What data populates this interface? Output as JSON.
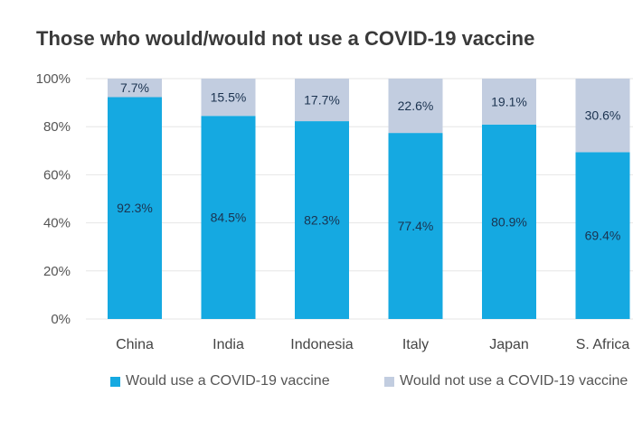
{
  "title": "Those who would/would not use a COVID-19 vaccine",
  "colors": {
    "would": "#15a9e1",
    "would_not": "#c2cde0",
    "grid": "#e6e6e6"
  },
  "chart_data": {
    "type": "bar",
    "stacked": true,
    "title": "Those who would/would not use a COVID-19 vaccine",
    "categories": [
      "China",
      "India",
      "Indonesia",
      "Italy",
      "Japan",
      "S. Africa"
    ],
    "series": [
      {
        "name": "Would use a COVID-19 vaccine",
        "values": [
          92.3,
          84.5,
          82.3,
          77.4,
          80.9,
          69.4
        ],
        "labels": [
          "92.3%",
          "84.5%",
          "82.3%",
          "77.4%",
          "80.9%",
          "69.4%"
        ]
      },
      {
        "name": "Would not use a COVID-19 vaccine",
        "values": [
          7.7,
          15.5,
          17.7,
          22.6,
          19.1,
          30.6
        ],
        "labels": [
          "7.7%",
          "15.5%",
          "17.7%",
          "22.6%",
          "19.1%",
          "30.6%"
        ]
      }
    ],
    "yticks": [
      "0%",
      "20%",
      "40%",
      "60%",
      "80%",
      "100%"
    ],
    "ylim": [
      0,
      100
    ],
    "xlabel": "",
    "ylabel": "",
    "legend": "bottom"
  }
}
